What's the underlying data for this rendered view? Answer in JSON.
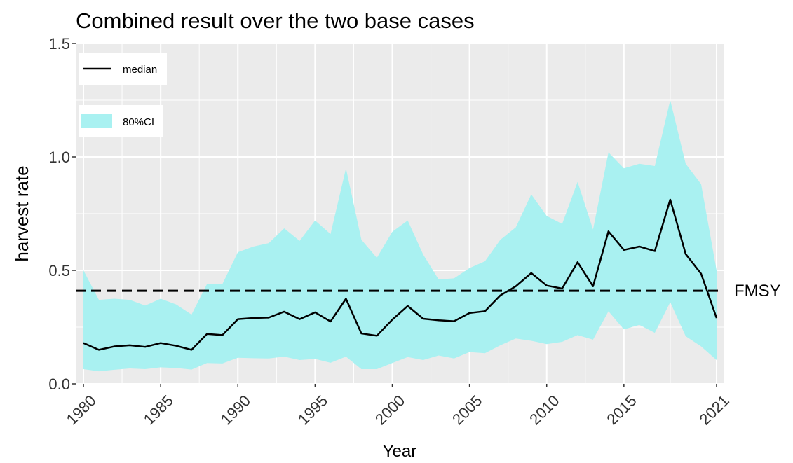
{
  "chart_data": {
    "type": "line",
    "title": "Combined result over the two base cases",
    "xlabel": "Year",
    "ylabel": "harvest rate",
    "x": [
      1980,
      1981,
      1982,
      1983,
      1984,
      1985,
      1986,
      1987,
      1988,
      1989,
      1990,
      1991,
      1992,
      1993,
      1994,
      1995,
      1996,
      1997,
      1998,
      1999,
      2000,
      2001,
      2002,
      2003,
      2004,
      2005,
      2006,
      2007,
      2008,
      2009,
      2010,
      2011,
      2012,
      2013,
      2014,
      2015,
      2016,
      2017,
      2018,
      2019,
      2020,
      2021
    ],
    "series": [
      {
        "name": "median",
        "color": "#000000",
        "values": [
          0.18,
          0.15,
          0.165,
          0.17,
          0.163,
          0.18,
          0.168,
          0.15,
          0.22,
          0.215,
          0.285,
          0.29,
          0.292,
          0.318,
          0.285,
          0.315,
          0.275,
          0.375,
          0.222,
          0.212,
          0.283,
          0.343,
          0.287,
          0.28,
          0.276,
          0.312,
          0.32,
          0.39,
          0.43,
          0.488,
          0.433,
          0.42,
          0.536,
          0.43,
          0.672,
          0.59,
          0.605,
          0.585,
          0.812,
          0.572,
          0.485,
          0.29
        ]
      }
    ],
    "band": {
      "name": "80%CI",
      "color": "#a9f1f1",
      "upper": [
        0.5,
        0.37,
        0.375,
        0.37,
        0.345,
        0.375,
        0.35,
        0.305,
        0.44,
        0.44,
        0.58,
        0.605,
        0.62,
        0.685,
        0.63,
        0.72,
        0.66,
        0.95,
        0.635,
        0.555,
        0.67,
        0.72,
        0.57,
        0.46,
        0.465,
        0.51,
        0.54,
        0.635,
        0.69,
        0.835,
        0.74,
        0.705,
        0.89,
        0.68,
        1.02,
        0.95,
        0.97,
        0.96,
        1.25,
        0.97,
        0.88,
        0.5
      ],
      "lower": [
        0.065,
        0.055,
        0.062,
        0.068,
        0.065,
        0.073,
        0.07,
        0.063,
        0.092,
        0.09,
        0.115,
        0.113,
        0.112,
        0.12,
        0.105,
        0.11,
        0.093,
        0.12,
        0.065,
        0.065,
        0.092,
        0.118,
        0.105,
        0.125,
        0.112,
        0.14,
        0.135,
        0.17,
        0.2,
        0.19,
        0.175,
        0.185,
        0.215,
        0.195,
        0.32,
        0.24,
        0.26,
        0.225,
        0.36,
        0.21,
        0.165,
        0.105
      ]
    },
    "reference_line": {
      "label": "FMSY",
      "value": 0.41
    },
    "xlim": [
      1979.5,
      2021.5
    ],
    "ylim": [
      0,
      1.5
    ],
    "xticks": [
      1980,
      1985,
      1990,
      1995,
      2000,
      2005,
      2010,
      2015,
      2021
    ],
    "yticks": [
      {
        "value": 0,
        "label": "0.0"
      },
      {
        "value": 0.5,
        "label": "0.5"
      },
      {
        "value": 1,
        "label": "1.0"
      },
      {
        "value": 1.5,
        "label": "1.5"
      }
    ],
    "grid": true
  }
}
